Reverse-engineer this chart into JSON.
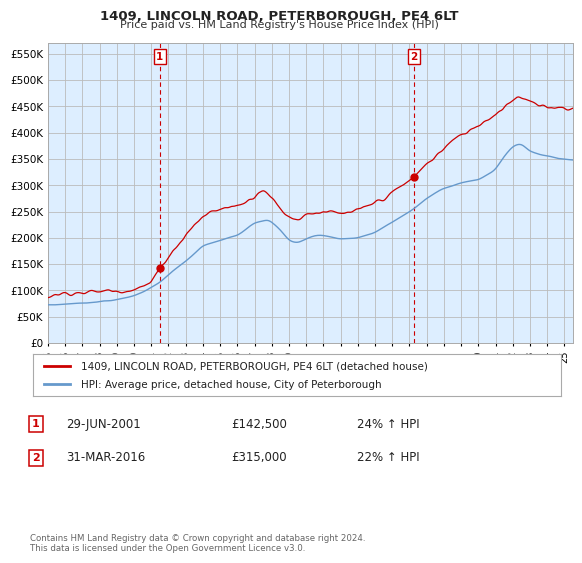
{
  "title": "1409, LINCOLN ROAD, PETERBOROUGH, PE4 6LT",
  "subtitle": "Price paid vs. HM Land Registry's House Price Index (HPI)",
  "ytick_values": [
    0,
    50000,
    100000,
    150000,
    200000,
    250000,
    300000,
    350000,
    400000,
    450000,
    500000,
    550000
  ],
  "ylim": [
    0,
    570000
  ],
  "xlim_start": 1995.0,
  "xlim_end": 2025.5,
  "xtick_years": [
    1995,
    1996,
    1997,
    1998,
    1999,
    2000,
    2001,
    2002,
    2003,
    2004,
    2005,
    2006,
    2007,
    2008,
    2009,
    2010,
    2011,
    2012,
    2013,
    2014,
    2015,
    2016,
    2017,
    2018,
    2019,
    2020,
    2021,
    2022,
    2023,
    2024,
    2025
  ],
  "sale1_x": 2001.5,
  "sale1_y": 142500,
  "sale1_label": "1",
  "sale1_date": "29-JUN-2001",
  "sale1_price": "£142,500",
  "sale1_hpi": "24% ↑ HPI",
  "sale2_x": 2016.25,
  "sale2_y": 315000,
  "sale2_label": "2",
  "sale2_date": "31-MAR-2016",
  "sale2_price": "£315,000",
  "sale2_hpi": "22% ↑ HPI",
  "legend_line1": "1409, LINCOLN ROAD, PETERBOROUGH, PE4 6LT (detached house)",
  "legend_line2": "HPI: Average price, detached house, City of Peterborough",
  "footer": "Contains HM Land Registry data © Crown copyright and database right 2024.\nThis data is licensed under the Open Government Licence v3.0.",
  "price_line_color": "#cc0000",
  "hpi_line_color": "#6699cc",
  "chart_bg_color": "#ddeeff",
  "vline_color": "#cc0000",
  "background_color": "#ffffff",
  "grid_color": "#bbbbbb"
}
